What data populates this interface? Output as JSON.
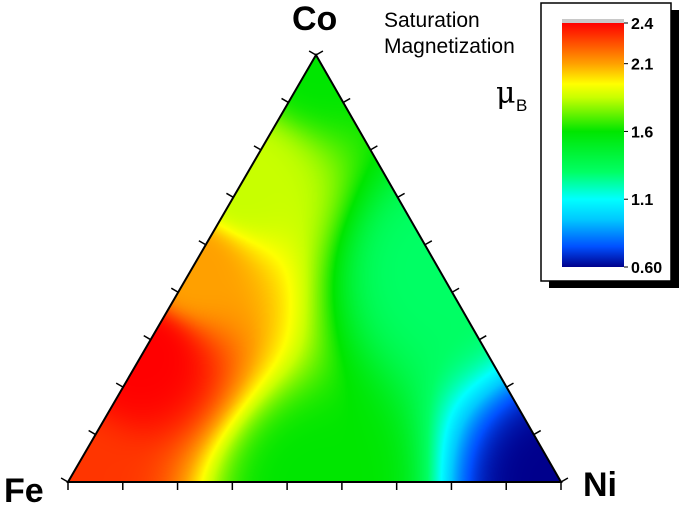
{
  "chart_data": {
    "type": "heatmap",
    "subtype": "ternary-contour",
    "title_lines": [
      "Saturation",
      "Magnetization"
    ],
    "unit": {
      "symbol": "μ",
      "subscript": "B"
    },
    "vertices": {
      "top": "Co",
      "left": "Fe",
      "right": "Ni"
    },
    "colorbar": {
      "range": [
        0.6,
        2.4
      ],
      "tick_labels": [
        "2.4",
        "2.1",
        "1.6",
        "1.1",
        "0.60"
      ],
      "tick_values": [
        2.4,
        2.1,
        1.6,
        1.1,
        0.6
      ],
      "colormap_stops": [
        {
          "value": 0.6,
          "color": "#00008c"
        },
        {
          "value": 0.75,
          "color": "#0050ff"
        },
        {
          "value": 0.95,
          "color": "#00c8ff"
        },
        {
          "value": 1.1,
          "color": "#00ffff"
        },
        {
          "value": 1.3,
          "color": "#00ff64"
        },
        {
          "value": 1.6,
          "color": "#00e600"
        },
        {
          "value": 1.85,
          "color": "#c8ff00"
        },
        {
          "value": 1.95,
          "color": "#ffff00"
        },
        {
          "value": 2.1,
          "color": "#ffa000"
        },
        {
          "value": 2.25,
          "color": "#ff5000"
        },
        {
          "value": 2.4,
          "color": "#ff0000"
        }
      ]
    },
    "ticks_per_side": 9,
    "surface_samples": [
      {
        "Fe": 1.0,
        "Co": 0.0,
        "Ni": 0.0,
        "value": 2.3
      },
      {
        "Fe": 0.7,
        "Co": 0.3,
        "Ni": 0.0,
        "value": 2.4
      },
      {
        "Fe": 0.5,
        "Co": 0.5,
        "Ni": 0.0,
        "value": 2.1
      },
      {
        "Fe": 0.3,
        "Co": 0.7,
        "Ni": 0.0,
        "value": 1.85
      },
      {
        "Fe": 0.0,
        "Co": 1.0,
        "Ni": 0.0,
        "value": 1.6
      },
      {
        "Fe": 0.0,
        "Co": 0.5,
        "Ni": 0.5,
        "value": 1.3
      },
      {
        "Fe": 0.0,
        "Co": 0.0,
        "Ni": 1.0,
        "value": 0.6
      },
      {
        "Fe": 0.5,
        "Co": 0.0,
        "Ni": 0.5,
        "value": 1.6
      }
    ]
  }
}
